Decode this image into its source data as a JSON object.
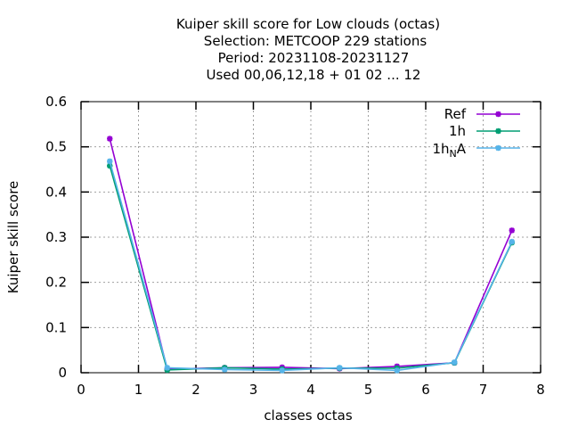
{
  "chart_data": {
    "type": "line",
    "title_lines": [
      "Kuiper skill score  for Low clouds (octas)",
      "Selection: METCOOP    229 stations",
      "Period: 20231108-20231127",
      "Used  00,06,12,18  + 01 02 ... 12"
    ],
    "xlabel": "classes octas",
    "ylabel": "Kuiper skill score",
    "xlim": [
      0,
      8
    ],
    "ylim": [
      0,
      0.6
    ],
    "x_ticks": [
      0,
      1,
      2,
      3,
      4,
      5,
      6,
      7,
      8
    ],
    "x_tick_labels": [
      "0",
      "1",
      "2",
      "3",
      "4",
      "5",
      "6",
      "7",
      "8"
    ],
    "y_ticks": [
      0,
      0.1,
      0.2,
      0.3,
      0.4,
      0.5,
      0.6
    ],
    "y_tick_labels": [
      "0",
      "0.1",
      "0.2",
      "0.3",
      "0.4",
      "0.5",
      "0.6"
    ],
    "grid": true,
    "legend_position": "top-right",
    "x": [
      0.5,
      1.5,
      2.5,
      3.5,
      4.5,
      5.5,
      6.5,
      7.5
    ],
    "series": [
      {
        "name": "Ref",
        "color": "#9400d3",
        "values": [
          0.518,
          0.008,
          0.011,
          0.012,
          0.009,
          0.014,
          0.022,
          0.315
        ]
      },
      {
        "name": "1h",
        "color": "#009e73",
        "values": [
          0.458,
          0.006,
          0.011,
          0.008,
          0.01,
          0.01,
          0.022,
          0.288
        ]
      },
      {
        "name": "1h_NA",
        "name_main": "1h",
        "name_sub": "N",
        "name_tail": "A",
        "color": "#56b4e9",
        "values": [
          0.468,
          0.011,
          0.007,
          0.005,
          0.011,
          0.005,
          0.023,
          0.29
        ]
      }
    ]
  }
}
